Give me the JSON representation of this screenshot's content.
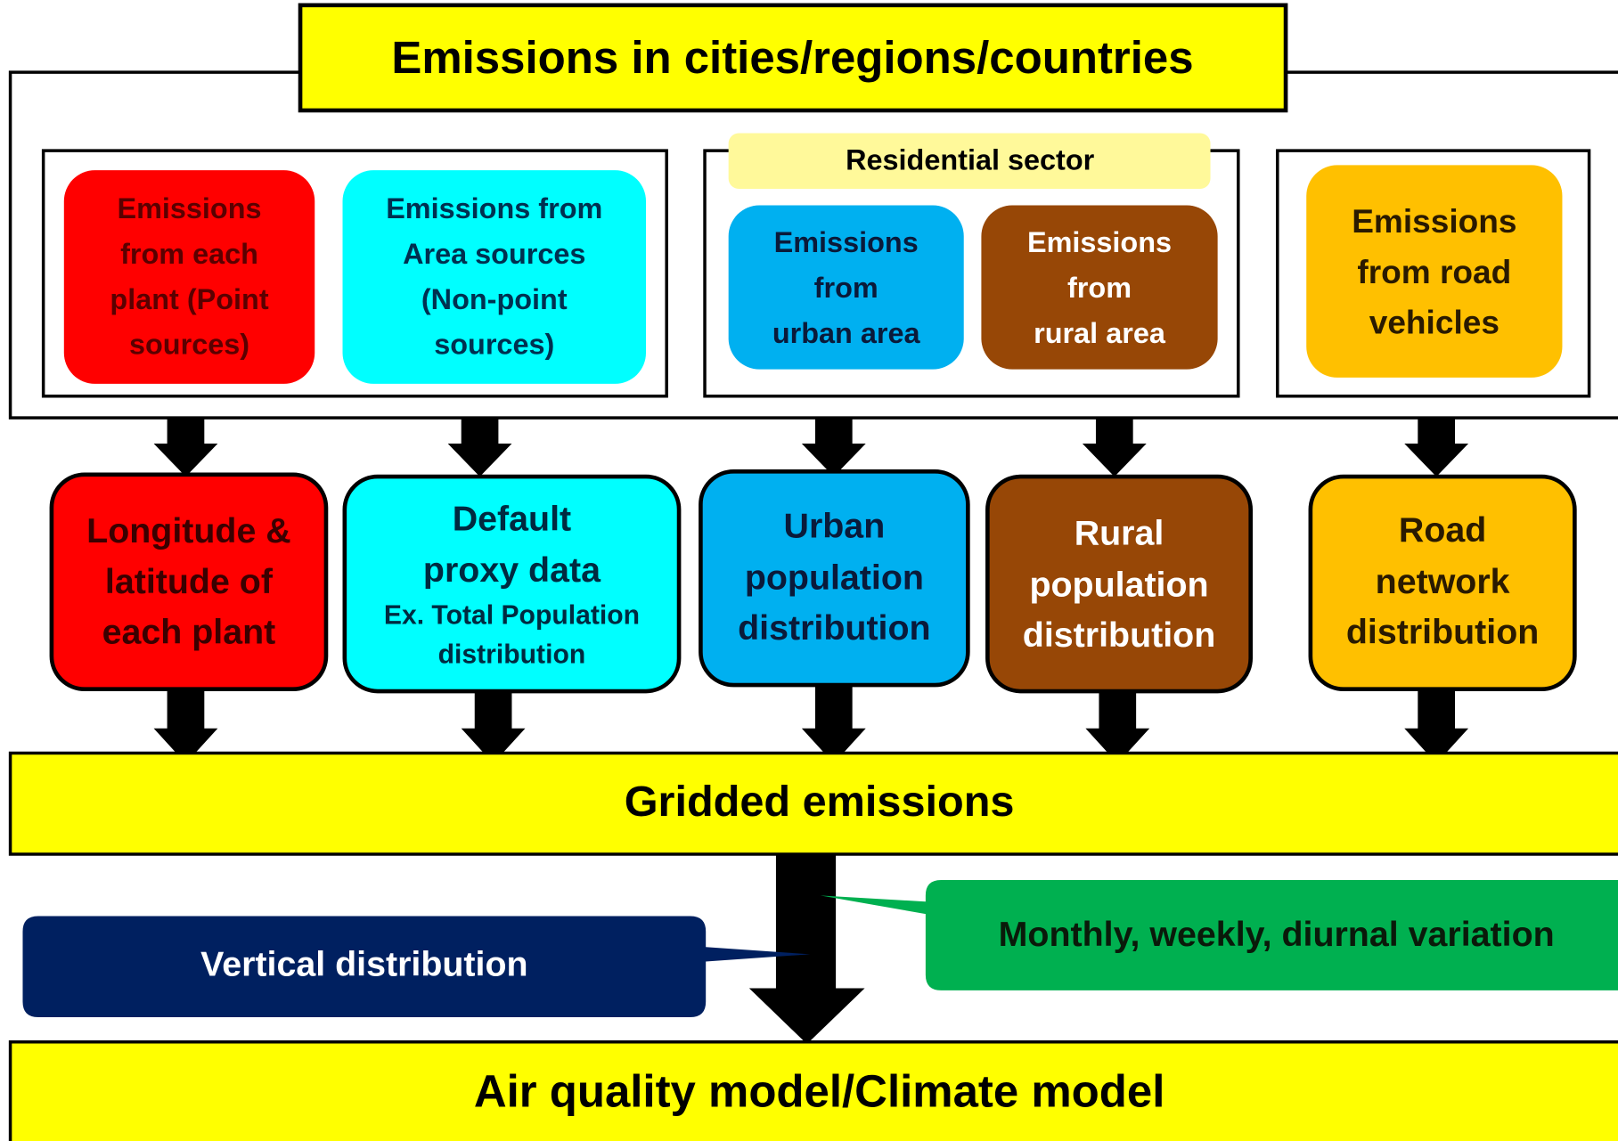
{
  "header": {
    "title": "Emissions in cities/regions/countries"
  },
  "residential_label": "Residential sector",
  "sources": [
    {
      "lines": [
        "Emissions",
        "from each",
        "plant (Point",
        "sources)"
      ]
    },
    {
      "lines": [
        "Emissions from",
        "Area sources",
        "(Non-point",
        "sources)"
      ]
    },
    {
      "lines": [
        "Emissions",
        "from",
        "urban area"
      ]
    },
    {
      "lines": [
        "Emissions",
        "from",
        "rural area"
      ]
    },
    {
      "lines": [
        "Emissions",
        "from road",
        "vehicles"
      ]
    }
  ],
  "proxies": [
    {
      "lines": [
        "Longitude &",
        "latitude of",
        "each plant"
      ]
    },
    {
      "lines": [
        "Default",
        "proxy data",
        "Ex. Total Population",
        "distribution"
      ]
    },
    {
      "lines": [
        "Urban",
        "population",
        "distribution"
      ]
    },
    {
      "lines": [
        "Rural",
        "population",
        "distribution"
      ]
    },
    {
      "lines": [
        "Road",
        "network",
        "distribution"
      ]
    }
  ],
  "gridded": "Gridded emissions",
  "callouts": {
    "vertical": "Vertical distribution",
    "temporal": "Monthly, weekly, diurnal variation"
  },
  "output": "Air quality model/Climate model"
}
